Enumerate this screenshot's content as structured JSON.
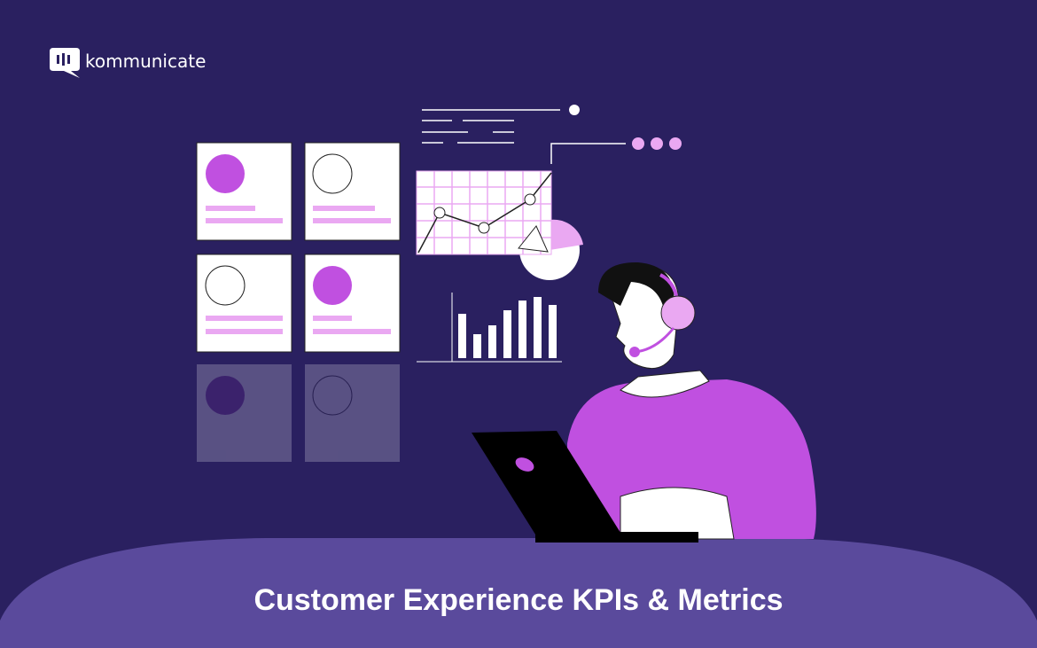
{
  "brand": "kommunicate",
  "title": "Customer Experience KPIs & Metrics"
}
